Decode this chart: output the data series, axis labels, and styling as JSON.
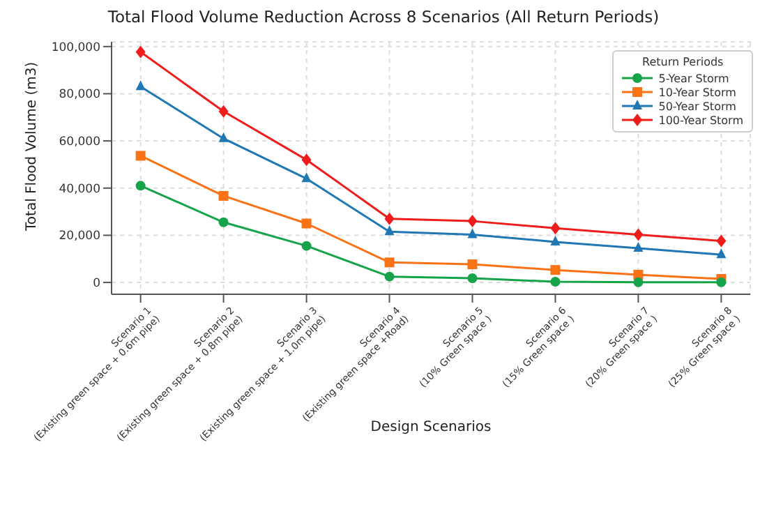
{
  "chart_data": {
    "type": "line",
    "title": "Total Flood Volume Reduction Across 8 Scenarios (All Return Periods)",
    "xlabel": "Design Scenarios",
    "ylabel": "Total Flood Volume (m3)",
    "legend_title": "Return Periods",
    "categories": [
      "Scenario 1\n(Existing green space + 0.6m pipe)",
      "Scenario 2\n(Existing green space + 0.8m pipe)",
      "Scenario 3\n(Existing green space + 1.0m pipe)",
      "Scenario 4\n(Existing green space +Road)",
      "Scenario 5\n(10% Green space )",
      "Scenario 6\n(15% Green space )",
      "Scenario 7\n(20% Green space )",
      "Scenario 8\n(25% Green space )"
    ],
    "series": [
      {
        "name": "5-Year Storm",
        "color": "#16a34a",
        "marker": "circle",
        "values": [
          41000,
          25500,
          15500,
          2500,
          1800,
          300,
          100,
          100
        ]
      },
      {
        "name": "10-Year Storm",
        "color": "#f97316",
        "marker": "square",
        "values": [
          53700,
          36700,
          25000,
          8500,
          7700,
          5300,
          3300,
          1500
        ]
      },
      {
        "name": "50-Year Storm",
        "color": "#1f77b4",
        "marker": "triangle",
        "values": [
          83000,
          61000,
          44000,
          21500,
          20300,
          17200,
          14500,
          11800
        ]
      },
      {
        "name": "100-Year Storm",
        "color": "#ef1c1c",
        "marker": "diamond",
        "values": [
          97700,
          72500,
          52000,
          27000,
          26000,
          23000,
          20300,
          17600
        ]
      }
    ],
    "ylim": [
      -5000,
      102000
    ],
    "yticks": [
      {
        "value": 0,
        "label": "0"
      },
      {
        "value": 20000,
        "label": "20,000"
      },
      {
        "value": 40000,
        "label": "40,000"
      },
      {
        "value": 60000,
        "label": "60,000"
      },
      {
        "value": 80000,
        "label": "80,000"
      },
      {
        "value": 100000,
        "label": "100,000"
      }
    ],
    "grid": true,
    "legend": "top right",
    "line_style": "solid"
  }
}
